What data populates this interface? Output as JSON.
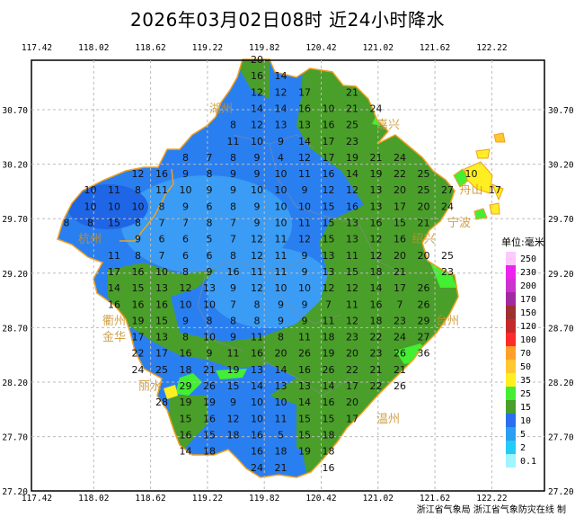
{
  "title": "2026年03月02日08时  近24小时降水",
  "footer": "浙江省气象局  浙江省气象防灾在线  制",
  "axes": {
    "lon_ticks": [
      "117.42",
      "118.02",
      "118.62",
      "119.22",
      "119.82",
      "120.42",
      "121.02",
      "121.62",
      "122.22"
    ],
    "lat_ticks": [
      "30.70",
      "30.20",
      "29.70",
      "29.20",
      "28.70",
      "28.20",
      "27.70",
      "27.20"
    ]
  },
  "legend": {
    "unit_label": "单位:毫米",
    "levels": [
      {
        "label": "250",
        "color": "#ffc8ff"
      },
      {
        "label": "230",
        "color": "#ee22ee"
      },
      {
        "label": "200",
        "color": "#cc33cc"
      },
      {
        "label": "170",
        "color": "#a02aa0"
      },
      {
        "label": "150",
        "color": "#a03030"
      },
      {
        "label": "120",
        "color": "#c42a2a"
      },
      {
        "label": "100",
        "color": "#ff2a2a"
      },
      {
        "label": "70",
        "color": "#ff9f2a"
      },
      {
        "label": "50",
        "color": "#ffc830"
      },
      {
        "label": "35",
        "color": "#ffee22"
      },
      {
        "label": "25",
        "color": "#44ee33"
      },
      {
        "label": "15",
        "color": "#4a9e2a"
      },
      {
        "label": "10",
        "color": "#2a6ff0"
      },
      {
        "label": "5",
        "color": "#2a9ef0"
      },
      {
        "label": "2",
        "color": "#22ccf5"
      },
      {
        "label": "0.1",
        "color": "#a0f5ff"
      }
    ]
  },
  "cities": [
    {
      "name": "湖州"
    },
    {
      "name": "嘉兴"
    },
    {
      "name": "杭州"
    },
    {
      "name": "绍兴"
    },
    {
      "name": "宁波"
    },
    {
      "name": "舟山"
    },
    {
      "name": "衢州"
    },
    {
      "name": "金华"
    },
    {
      "name": "丽水"
    },
    {
      "name": "台州"
    },
    {
      "name": "温州"
    }
  ],
  "colors": {
    "boundary": "#f0a020",
    "grid": "#bbbbbb",
    "city_label": "#c8902a"
  },
  "rain_grid_mm": [
    [
      null,
      null,
      null,
      null,
      null,
      null,
      null,
      null,
      20,
      null,
      null,
      null,
      null,
      null,
      null,
      null,
      null,
      null,
      null
    ],
    [
      null,
      null,
      null,
      null,
      null,
      null,
      null,
      null,
      16,
      14,
      null,
      null,
      null,
      null,
      null,
      null,
      null,
      null,
      null
    ],
    [
      null,
      null,
      null,
      null,
      null,
      null,
      null,
      null,
      12,
      12,
      17,
      null,
      21,
      null,
      null,
      null,
      null,
      null,
      null
    ],
    [
      null,
      null,
      null,
      null,
      null,
      null,
      null,
      null,
      14,
      14,
      16,
      10,
      21,
      24,
      null,
      null,
      null,
      null,
      null
    ],
    [
      null,
      null,
      null,
      null,
      null,
      null,
      null,
      8,
      12,
      13,
      13,
      16,
      25,
      null,
      null,
      null,
      null,
      null,
      null
    ],
    [
      null,
      null,
      null,
      null,
      null,
      null,
      null,
      11,
      10,
      9,
      14,
      17,
      23,
      null,
      null,
      null,
      null,
      null,
      null
    ],
    [
      null,
      null,
      null,
      null,
      null,
      8,
      7,
      8,
      9,
      4,
      12,
      17,
      19,
      21,
      24,
      null,
      null,
      null,
      null
    ],
    [
      null,
      null,
      null,
      12,
      16,
      9,
      8,
      9,
      9,
      10,
      11,
      16,
      14,
      19,
      22,
      25,
      null,
      10,
      null
    ],
    [
      null,
      10,
      11,
      8,
      11,
      10,
      9,
      9,
      10,
      10,
      9,
      12,
      12,
      13,
      20,
      25,
      27,
      null,
      17
    ],
    [
      null,
      10,
      10,
      10,
      8,
      9,
      6,
      8,
      9,
      10,
      10,
      15,
      16,
      13,
      17,
      20,
      24,
      null,
      null
    ],
    [
      8,
      8,
      15,
      8,
      7,
      7,
      8,
      7,
      9,
      10,
      11,
      15,
      13,
      16,
      15,
      21,
      null,
      null,
      null
    ],
    [
      null,
      null,
      null,
      9,
      6,
      6,
      5,
      7,
      12,
      11,
      12,
      15,
      13,
      12,
      16,
      null,
      null,
      null,
      null
    ],
    [
      null,
      null,
      11,
      8,
      7,
      6,
      6,
      8,
      12,
      11,
      9,
      13,
      11,
      12,
      20,
      20,
      25,
      null,
      null
    ],
    [
      null,
      null,
      17,
      16,
      10,
      8,
      9,
      16,
      11,
      11,
      9,
      13,
      15,
      18,
      21,
      null,
      23,
      null,
      null
    ],
    [
      null,
      null,
      14,
      15,
      13,
      12,
      13,
      9,
      12,
      10,
      10,
      12,
      12,
      14,
      17,
      26,
      null,
      null,
      null
    ],
    [
      null,
      null,
      16,
      16,
      16,
      10,
      10,
      7,
      8,
      9,
      9,
      7,
      11,
      16,
      7,
      26,
      null,
      null,
      null
    ],
    [
      null,
      null,
      null,
      19,
      15,
      9,
      8,
      8,
      8,
      9,
      9,
      11,
      12,
      18,
      23,
      29,
      null,
      null,
      null
    ],
    [
      null,
      null,
      null,
      17,
      13,
      8,
      10,
      9,
      11,
      8,
      11,
      18,
      23,
      22,
      24,
      27,
      null,
      null,
      null
    ],
    [
      null,
      null,
      null,
      22,
      17,
      16,
      9,
      11,
      16,
      20,
      26,
      19,
      20,
      23,
      26,
      36,
      null,
      null,
      null
    ],
    [
      null,
      null,
      null,
      24,
      25,
      18,
      21,
      19,
      13,
      14,
      16,
      26,
      22,
      21,
      21,
      null,
      null,
      null,
      null
    ],
    [
      null,
      null,
      null,
      null,
      null,
      29,
      26,
      15,
      14,
      13,
      13,
      14,
      17,
      22,
      26,
      null,
      null,
      null,
      null
    ],
    [
      null,
      null,
      null,
      null,
      28,
      19,
      19,
      9,
      10,
      10,
      14,
      16,
      20,
      null,
      null,
      null,
      null,
      null,
      null
    ],
    [
      null,
      null,
      null,
      null,
      null,
      15,
      16,
      12,
      10,
      11,
      15,
      15,
      17,
      null,
      null,
      null,
      null,
      null,
      null
    ],
    [
      null,
      null,
      null,
      null,
      null,
      16,
      15,
      18,
      16,
      5,
      15,
      18,
      null,
      null,
      null,
      null,
      null,
      null,
      null
    ],
    [
      null,
      null,
      null,
      null,
      null,
      14,
      18,
      null,
      16,
      18,
      19,
      18,
      null,
      null,
      null,
      null,
      null,
      null,
      null
    ],
    [
      null,
      null,
      null,
      null,
      null,
      null,
      null,
      null,
      24,
      21,
      null,
      16,
      null,
      null,
      null,
      null,
      null,
      null,
      null
    ]
  ]
}
